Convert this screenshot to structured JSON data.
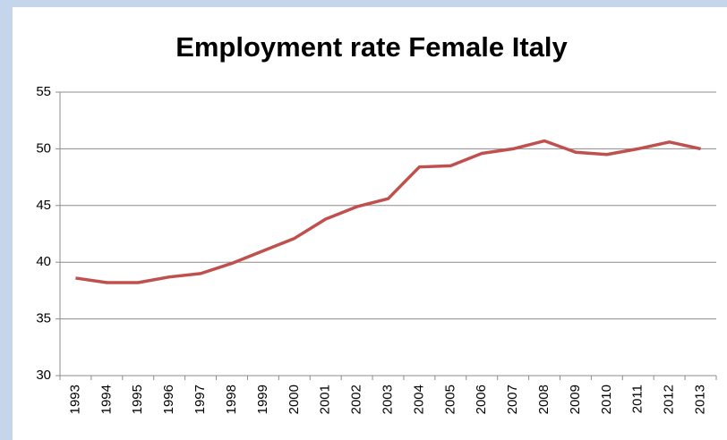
{
  "chart_data": {
    "type": "line",
    "title": "Employment rate Female Italy",
    "categories": [
      "1993",
      "1994",
      "1995",
      "1996",
      "1997",
      "1998",
      "1999",
      "2000",
      "2001",
      "2002",
      "2003",
      "2004",
      "2005",
      "2006",
      "2007",
      "2008",
      "2009",
      "2010",
      "2011",
      "2012",
      "2013"
    ],
    "series": [
      {
        "name": "Employment rate Female Italy",
        "color": "#c0504d",
        "values": [
          38.6,
          38.2,
          38.2,
          38.7,
          39.0,
          39.9,
          41.0,
          42.1,
          43.8,
          44.9,
          45.6,
          48.4,
          48.5,
          49.6,
          50.0,
          50.7,
          49.7,
          49.5,
          50.0,
          50.6,
          50.0
        ]
      }
    ],
    "ylim": [
      30,
      55
    ],
    "yticks": [
      30,
      35,
      40,
      45,
      50,
      55
    ],
    "grid": true
  }
}
